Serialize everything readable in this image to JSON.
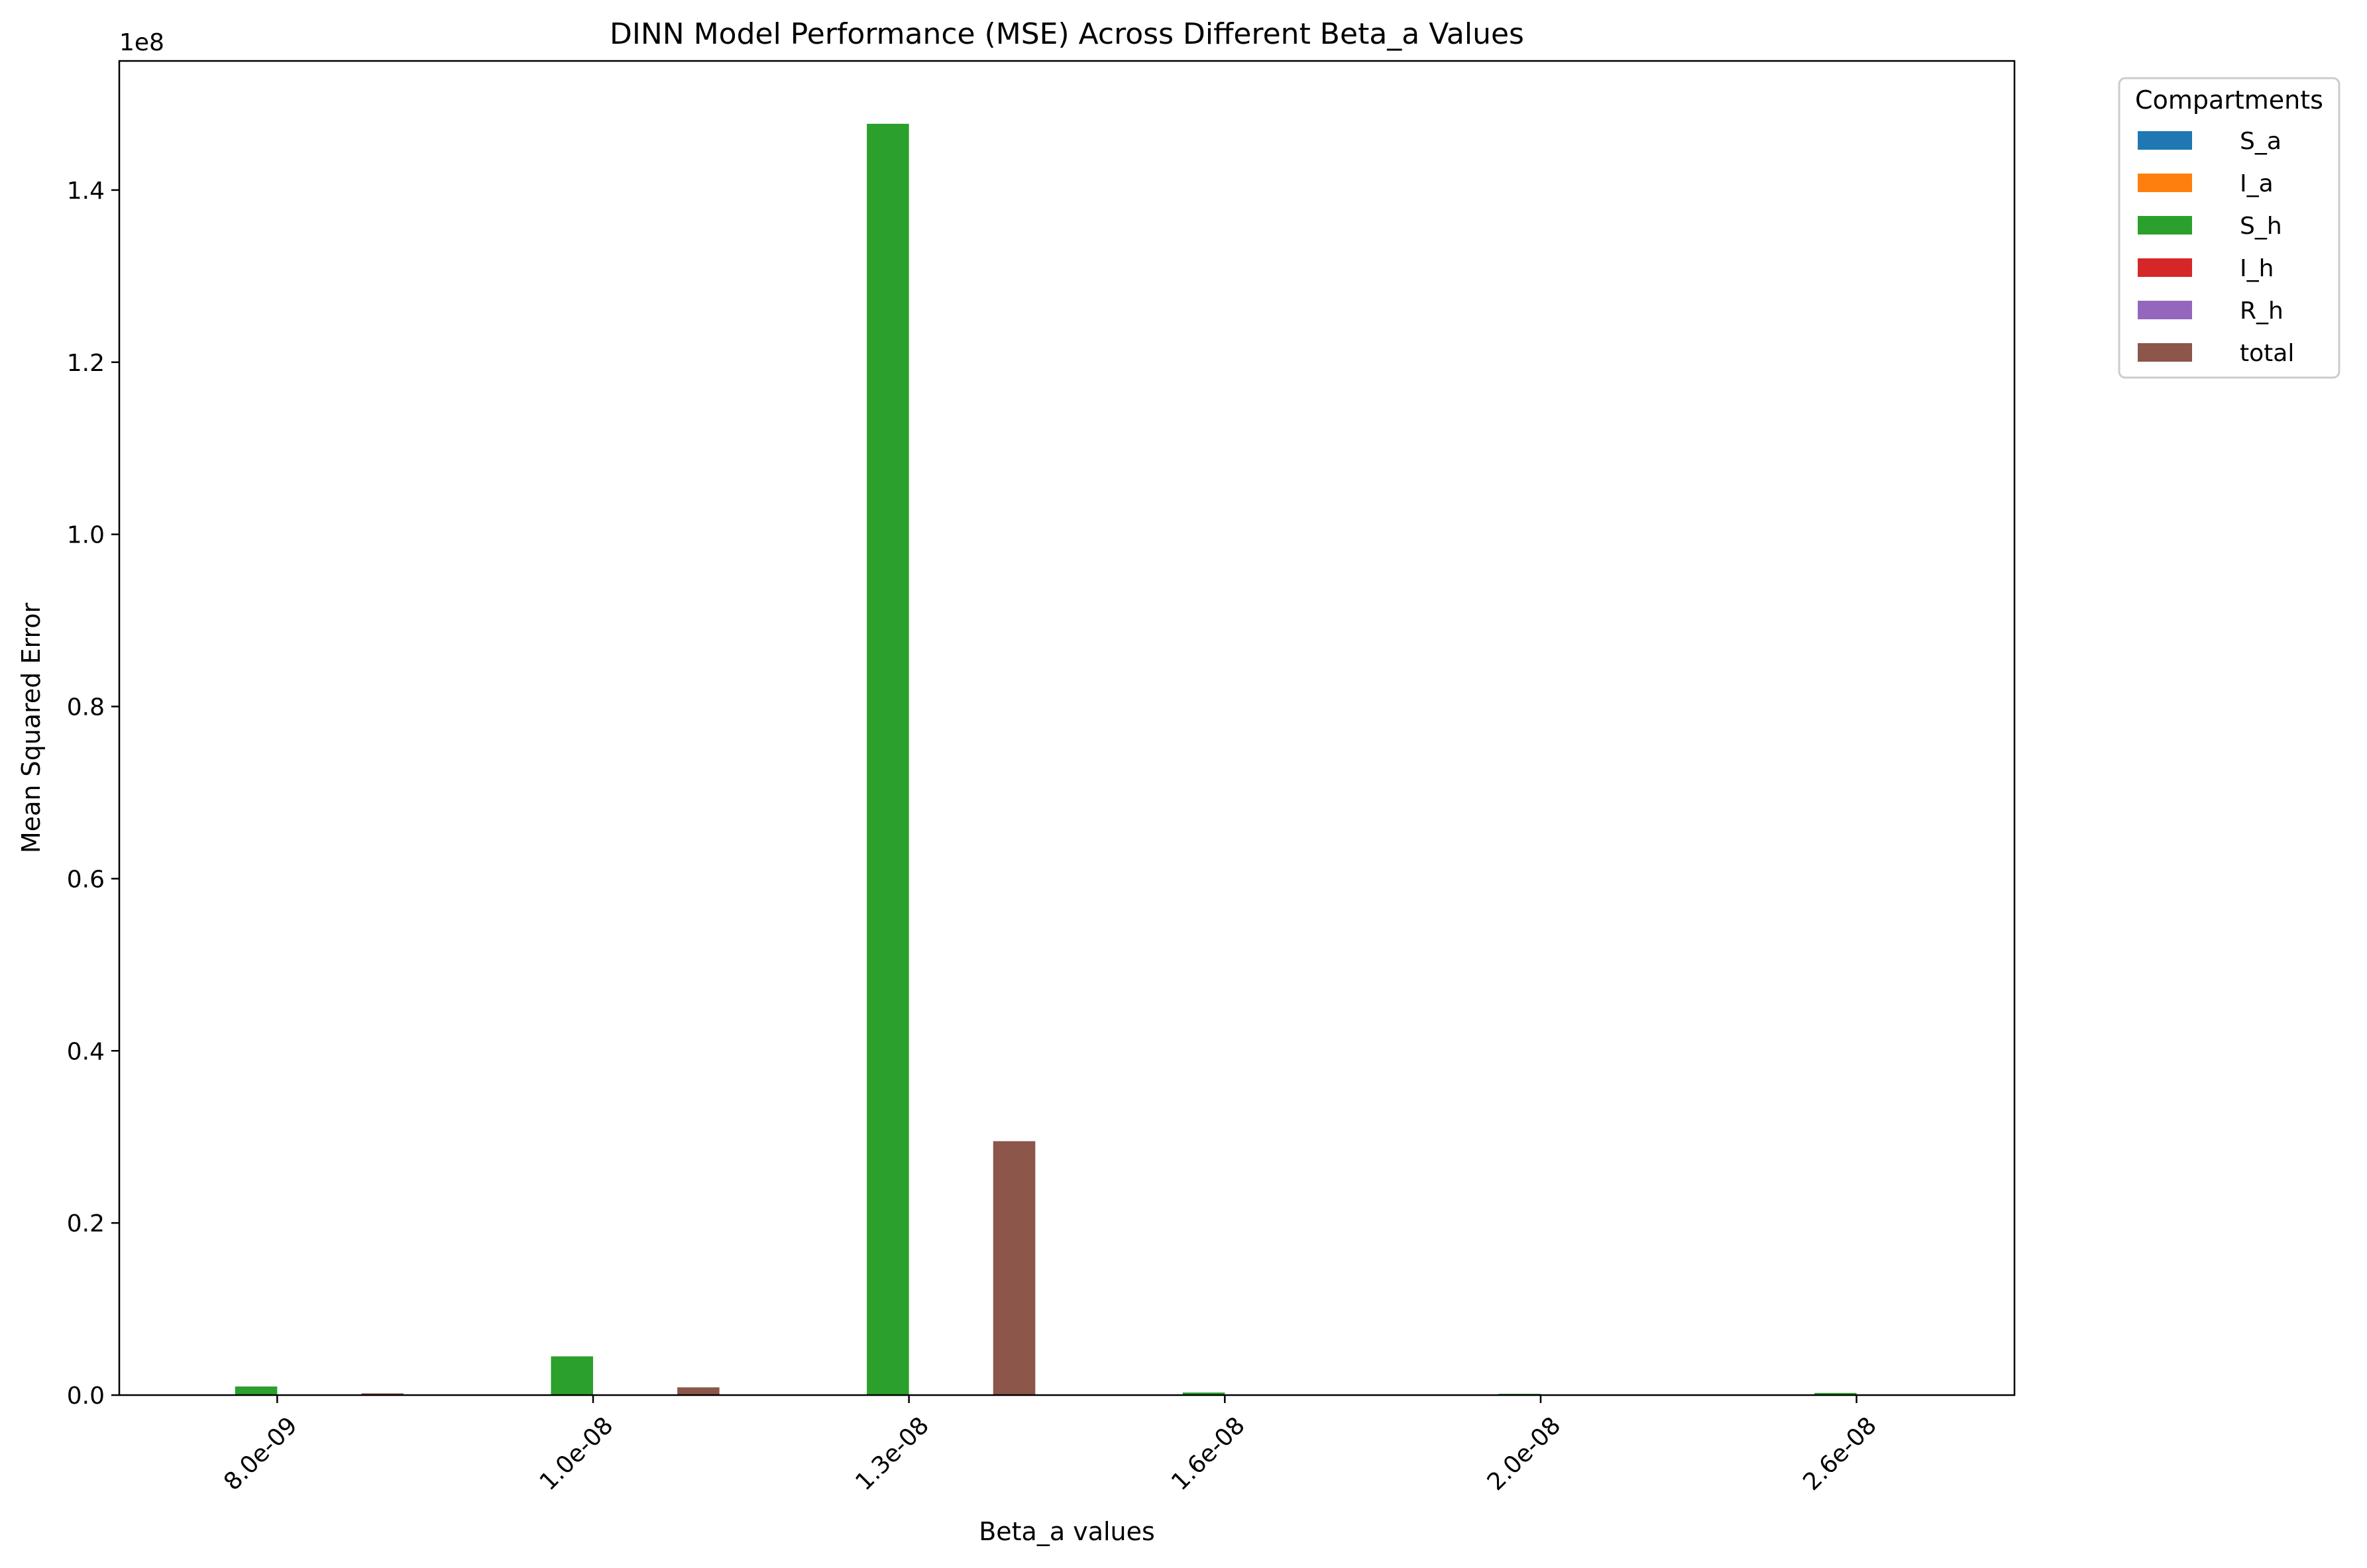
{
  "chart_data": {
    "type": "bar",
    "title": "DINN Model Performance (MSE) Across Different Beta_a Values",
    "xlabel": "Beta_a values",
    "ylabel": "Mean Squared Error",
    "y_scale_label": "1e8",
    "categories": [
      "8.0e-09",
      "1.0e-08",
      "1.3e-08",
      "1.6e-08",
      "2.0e-08",
      "2.6e-08"
    ],
    "yticks": [
      0,
      20000000,
      40000000,
      60000000,
      80000000,
      100000000,
      120000000,
      140000000
    ],
    "ytick_labels": [
      "0.0",
      "0.2",
      "0.4",
      "0.6",
      "0.8",
      "1.0",
      "1.2",
      "1.4"
    ],
    "ylim": [
      0,
      155000000
    ],
    "grid": false,
    "legend": {
      "title": "Compartments",
      "placement": "outside-top-right"
    },
    "series": [
      {
        "name": "S_a",
        "color": "#1f77b4",
        "values": [
          0,
          0,
          0,
          0,
          0,
          0
        ]
      },
      {
        "name": "I_a",
        "color": "#ff7f0e",
        "values": [
          0,
          0,
          0,
          0,
          0,
          0
        ]
      },
      {
        "name": "S_h",
        "color": "#2ca02c",
        "values": [
          1000000,
          4500000,
          147700000,
          300000,
          150000,
          250000
        ]
      },
      {
        "name": "I_h",
        "color": "#d62728",
        "values": [
          0,
          0,
          0,
          0,
          0,
          0
        ]
      },
      {
        "name": "R_h",
        "color": "#9467bd",
        "values": [
          0,
          0,
          0,
          0,
          0,
          0
        ]
      },
      {
        "name": "total",
        "color": "#8c564b",
        "values": [
          200000,
          900000,
          29500000,
          60000,
          30000,
          50000
        ]
      }
    ]
  }
}
